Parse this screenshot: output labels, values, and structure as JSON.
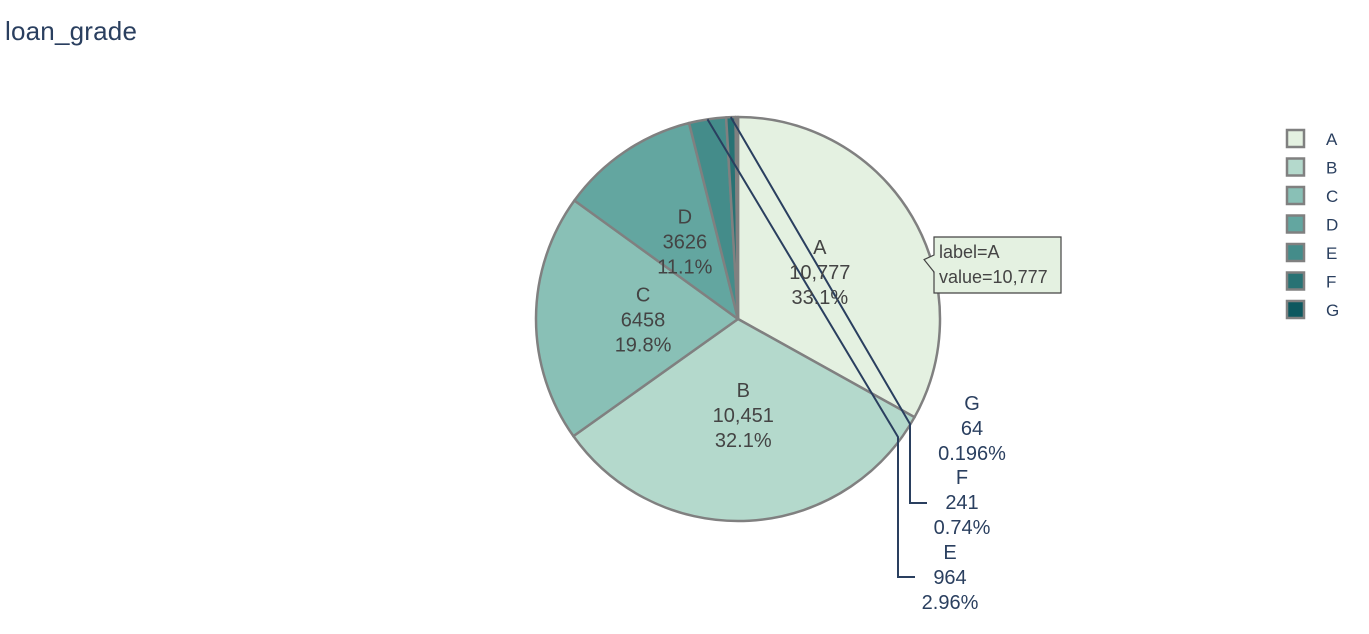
{
  "title": "loan_grade",
  "chart_data": {
    "type": "pie",
    "title": "loan_grade",
    "labels": [
      "A",
      "B",
      "C",
      "D",
      "E",
      "F",
      "G"
    ],
    "values": [
      10777,
      10451,
      6458,
      3626,
      964,
      241,
      64
    ],
    "value_text": [
      "10,777",
      "10,451",
      "6458",
      "3626",
      "964",
      "241",
      "64"
    ],
    "percent_text": [
      "33.1%",
      "32.1%",
      "19.8%",
      "11.1%",
      "2.96%",
      "0.74%",
      "0.196%"
    ],
    "colors": [
      "#e4f1e1",
      "#b4d9cc",
      "#89c0b6",
      "#63a6a0",
      "#448c8a",
      "#287274",
      "#0d585f"
    ],
    "slice_border_color": "#808080",
    "legend_position": "top-right",
    "direction": "clockwise",
    "start_angle": "top",
    "hover": {
      "label_line": "label=A",
      "value_line": "value=10,777"
    }
  }
}
